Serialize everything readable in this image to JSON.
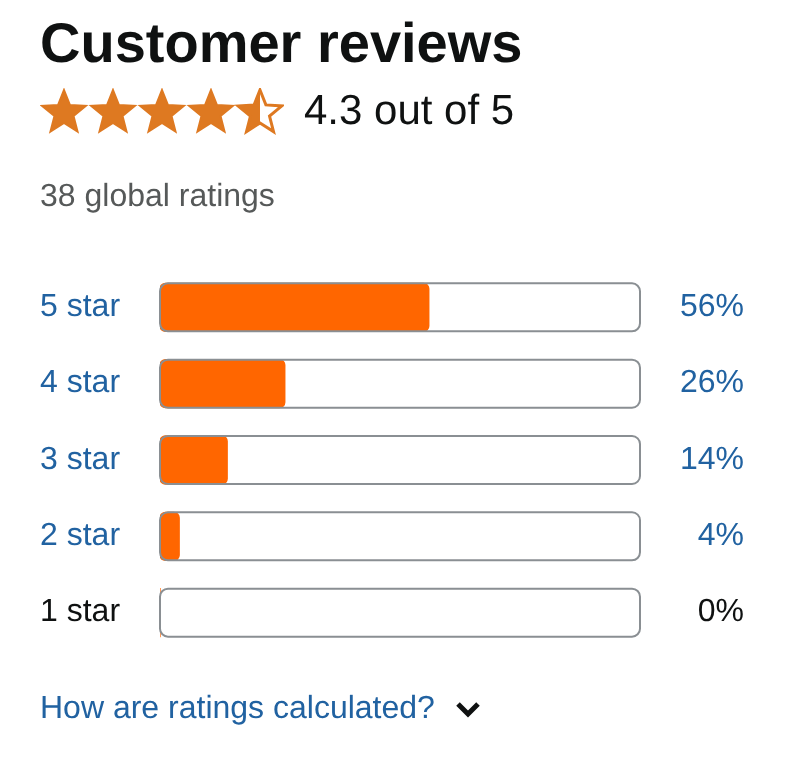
{
  "chart_data": {
    "type": "bar",
    "orientation": "horizontal",
    "title": "Customer reviews",
    "subtitle": "4.3 out of 5",
    "annotations": [
      "38 global ratings",
      "How are ratings calculated?"
    ],
    "categories": [
      "5 star",
      "4 star",
      "3 star",
      "2 star",
      "1 star"
    ],
    "values": [
      56,
      26,
      14,
      4,
      0
    ],
    "color": "#ff6600",
    "xlim": [
      0,
      100
    ],
    "tick_labels": "y",
    "legend": false,
    "value_labels": [
      "56%",
      "26%",
      "14%",
      "4%",
      "0%"
    ]
  }
}
